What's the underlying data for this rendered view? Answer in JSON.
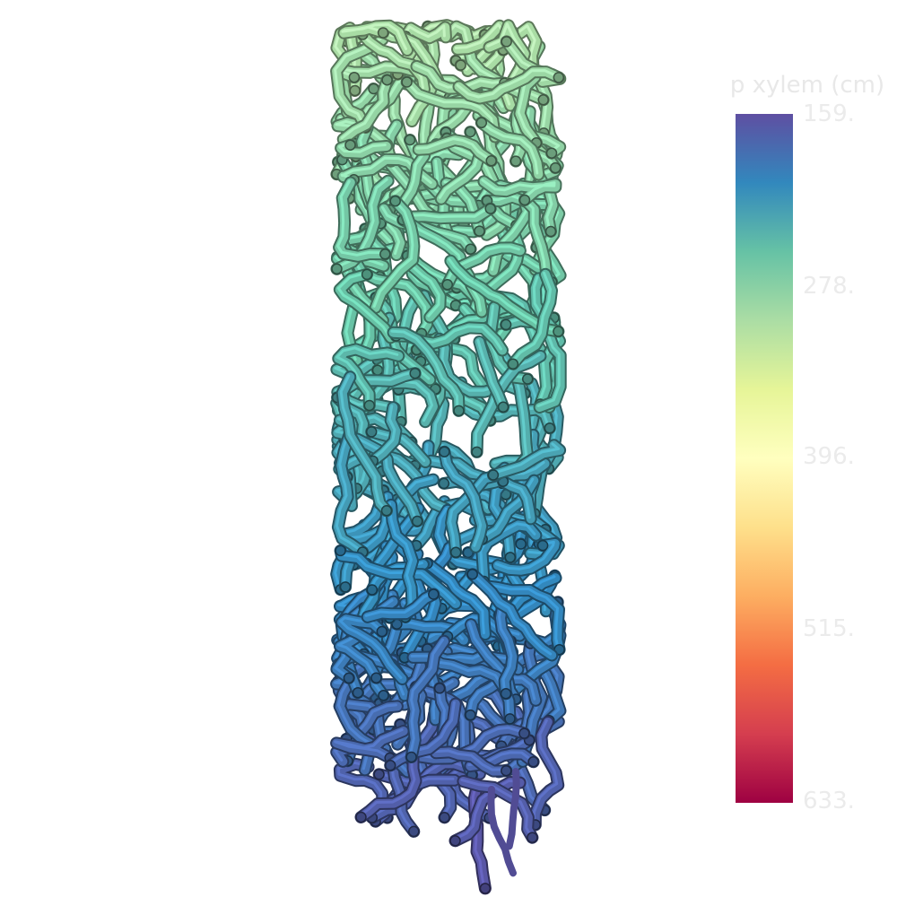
{
  "chart_data": {
    "type": "heatmap",
    "title": "",
    "colorbar": {
      "label": "p xylem (cm)",
      "ticks": [
        "159.",
        "278.",
        "396.",
        "515.",
        "633."
      ],
      "colormap": [
        "#5e4fa2",
        "#3288bd",
        "#66c2a5",
        "#abdda4",
        "#e6f598",
        "#ffffbf",
        "#fee08b",
        "#fdae61",
        "#f46d43",
        "#d53e4f",
        "#9e0142"
      ],
      "orientation": "vertical",
      "placement": "right"
    },
    "field": {
      "description_value_range": [
        159,
        633
      ],
      "top_value_approx": 300,
      "bottom_value_approx": 160
    }
  }
}
